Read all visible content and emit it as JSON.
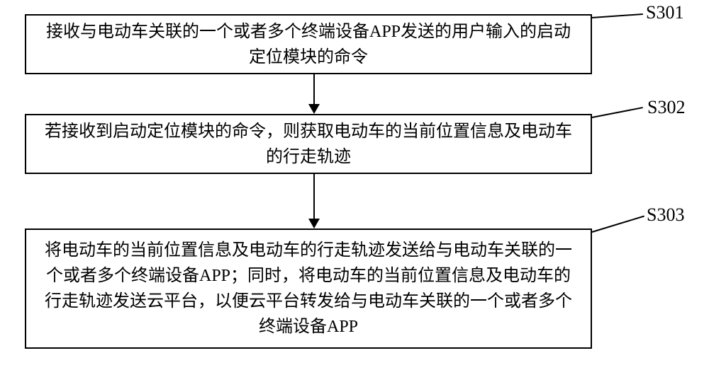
{
  "flowchart": {
    "type": "flowchart",
    "background_color": "#ffffff",
    "border_color": "#000000",
    "border_width": 2,
    "text_color": "#000000",
    "font_size": 24,
    "label_font_size": 26,
    "arrow_color": "#000000",
    "steps": [
      {
        "id": "S301",
        "text": "接收与电动车关联的一个或者多个终端设备APP发送的用户输入的启动定位模块的命令"
      },
      {
        "id": "S302",
        "text": "若接收到启动定位模块的命令，则获取电动车的当前位置信息及电动车的行走轨迹"
      },
      {
        "id": "S303",
        "text": "将电动车的当前位置信息及电动车的行走轨迹发送给与电动车关联的一个或者多个终端设备APP；同时，将电动车的当前位置信息及电动车的行走轨迹发送云平台，以便云平台转发给与电动车关联的一个或者多个终端设备APP"
      }
    ]
  }
}
